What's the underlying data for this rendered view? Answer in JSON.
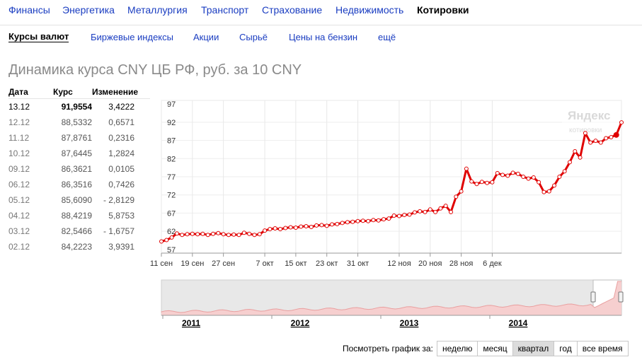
{
  "topnav": [
    "Финансы",
    "Энергетика",
    "Металлургия",
    "Транспорт",
    "Страхование",
    "Недвижимость",
    "Котировки"
  ],
  "subnav": [
    "Курсы валют",
    "Биржевые индексы",
    "Акции",
    "Сырьё",
    "Цены на бензин",
    "ещё"
  ],
  "title": "Динамика курса CNY ЦБ РФ, руб. за 10 CNY",
  "table": {
    "headers": [
      "Дата",
      "Курс",
      "Изменение"
    ],
    "rows": [
      [
        "13.12",
        "91,9554",
        "3,4222"
      ],
      [
        "12.12",
        "88,5332",
        "0,6571"
      ],
      [
        "11.12",
        "87,8761",
        "0,2316"
      ],
      [
        "10.12",
        "87,6445",
        "1,2824"
      ],
      [
        "09.12",
        "86,3621",
        "0,0105"
      ],
      [
        "06.12",
        "86,3516",
        "0,7426"
      ],
      [
        "05.12",
        "85,6090",
        "- 2,8129"
      ],
      [
        "04.12",
        "88,4219",
        "5,8753"
      ],
      [
        "03.12",
        "82,5466",
        "- 1,6757"
      ],
      [
        "02.12",
        "84,2223",
        "3,9391"
      ]
    ]
  },
  "watermark": {
    "brand": "Яндекс",
    "sub": "котировки"
  },
  "chart_data": {
    "type": "line",
    "yticks": [
      97,
      92,
      87,
      82,
      77,
      72,
      67,
      62,
      57
    ],
    "ylim": [
      56,
      98
    ],
    "x_tick_labels": [
      "11 сен",
      "19 сен",
      "27 сен",
      "7 окт",
      "15 окт",
      "23 окт",
      "31 окт",
      "12 ноя",
      "20 ноя",
      "28 ноя",
      "6 дек"
    ],
    "series": [
      {
        "values": [
          59.2,
          59.6,
          60.3,
          61.4,
          61.0,
          61.2,
          61.3,
          61.2,
          61.3,
          61.0,
          61.3,
          61.5,
          61.2,
          61.0,
          61.1,
          61.0,
          61.6,
          61.3,
          61.0,
          61.2,
          62.2,
          62.6,
          62.8,
          62.6,
          62.9,
          63.1,
          63.0,
          63.3,
          63.4,
          63.2,
          63.6,
          63.7,
          63.5,
          63.9,
          64.0,
          64.3,
          64.5,
          64.6,
          64.8,
          64.9,
          64.8,
          65.1,
          65.0,
          65.3,
          65.5,
          66.3,
          66.2,
          66.5,
          66.6,
          67.2,
          67.5,
          67.3,
          68.0,
          67.3,
          68.3,
          69.0,
          67.3,
          71.5,
          73.0,
          79.2,
          75.7,
          75.0,
          75.6,
          75.3,
          75.5,
          78.0,
          77.5,
          77.3,
          78.1,
          77.8,
          77.0,
          76.5,
          76.8,
          75.5,
          72.8,
          73.0,
          74.6,
          77.0,
          78.5,
          81.0,
          84.0,
          82.3,
          89.0,
          86.4,
          86.9,
          86.4,
          87.6,
          87.9,
          88.5,
          91.96
        ]
      }
    ],
    "navigator": {
      "years": [
        "2011",
        "2012",
        "2013",
        "2014"
      ]
    }
  },
  "period": {
    "label": "Посмотреть график за:",
    "buttons": [
      "неделю",
      "месяц",
      "квартал",
      "год",
      "все время"
    ],
    "active": 2
  },
  "colors": {
    "line": "#e00000",
    "link": "#1a3dc1"
  }
}
